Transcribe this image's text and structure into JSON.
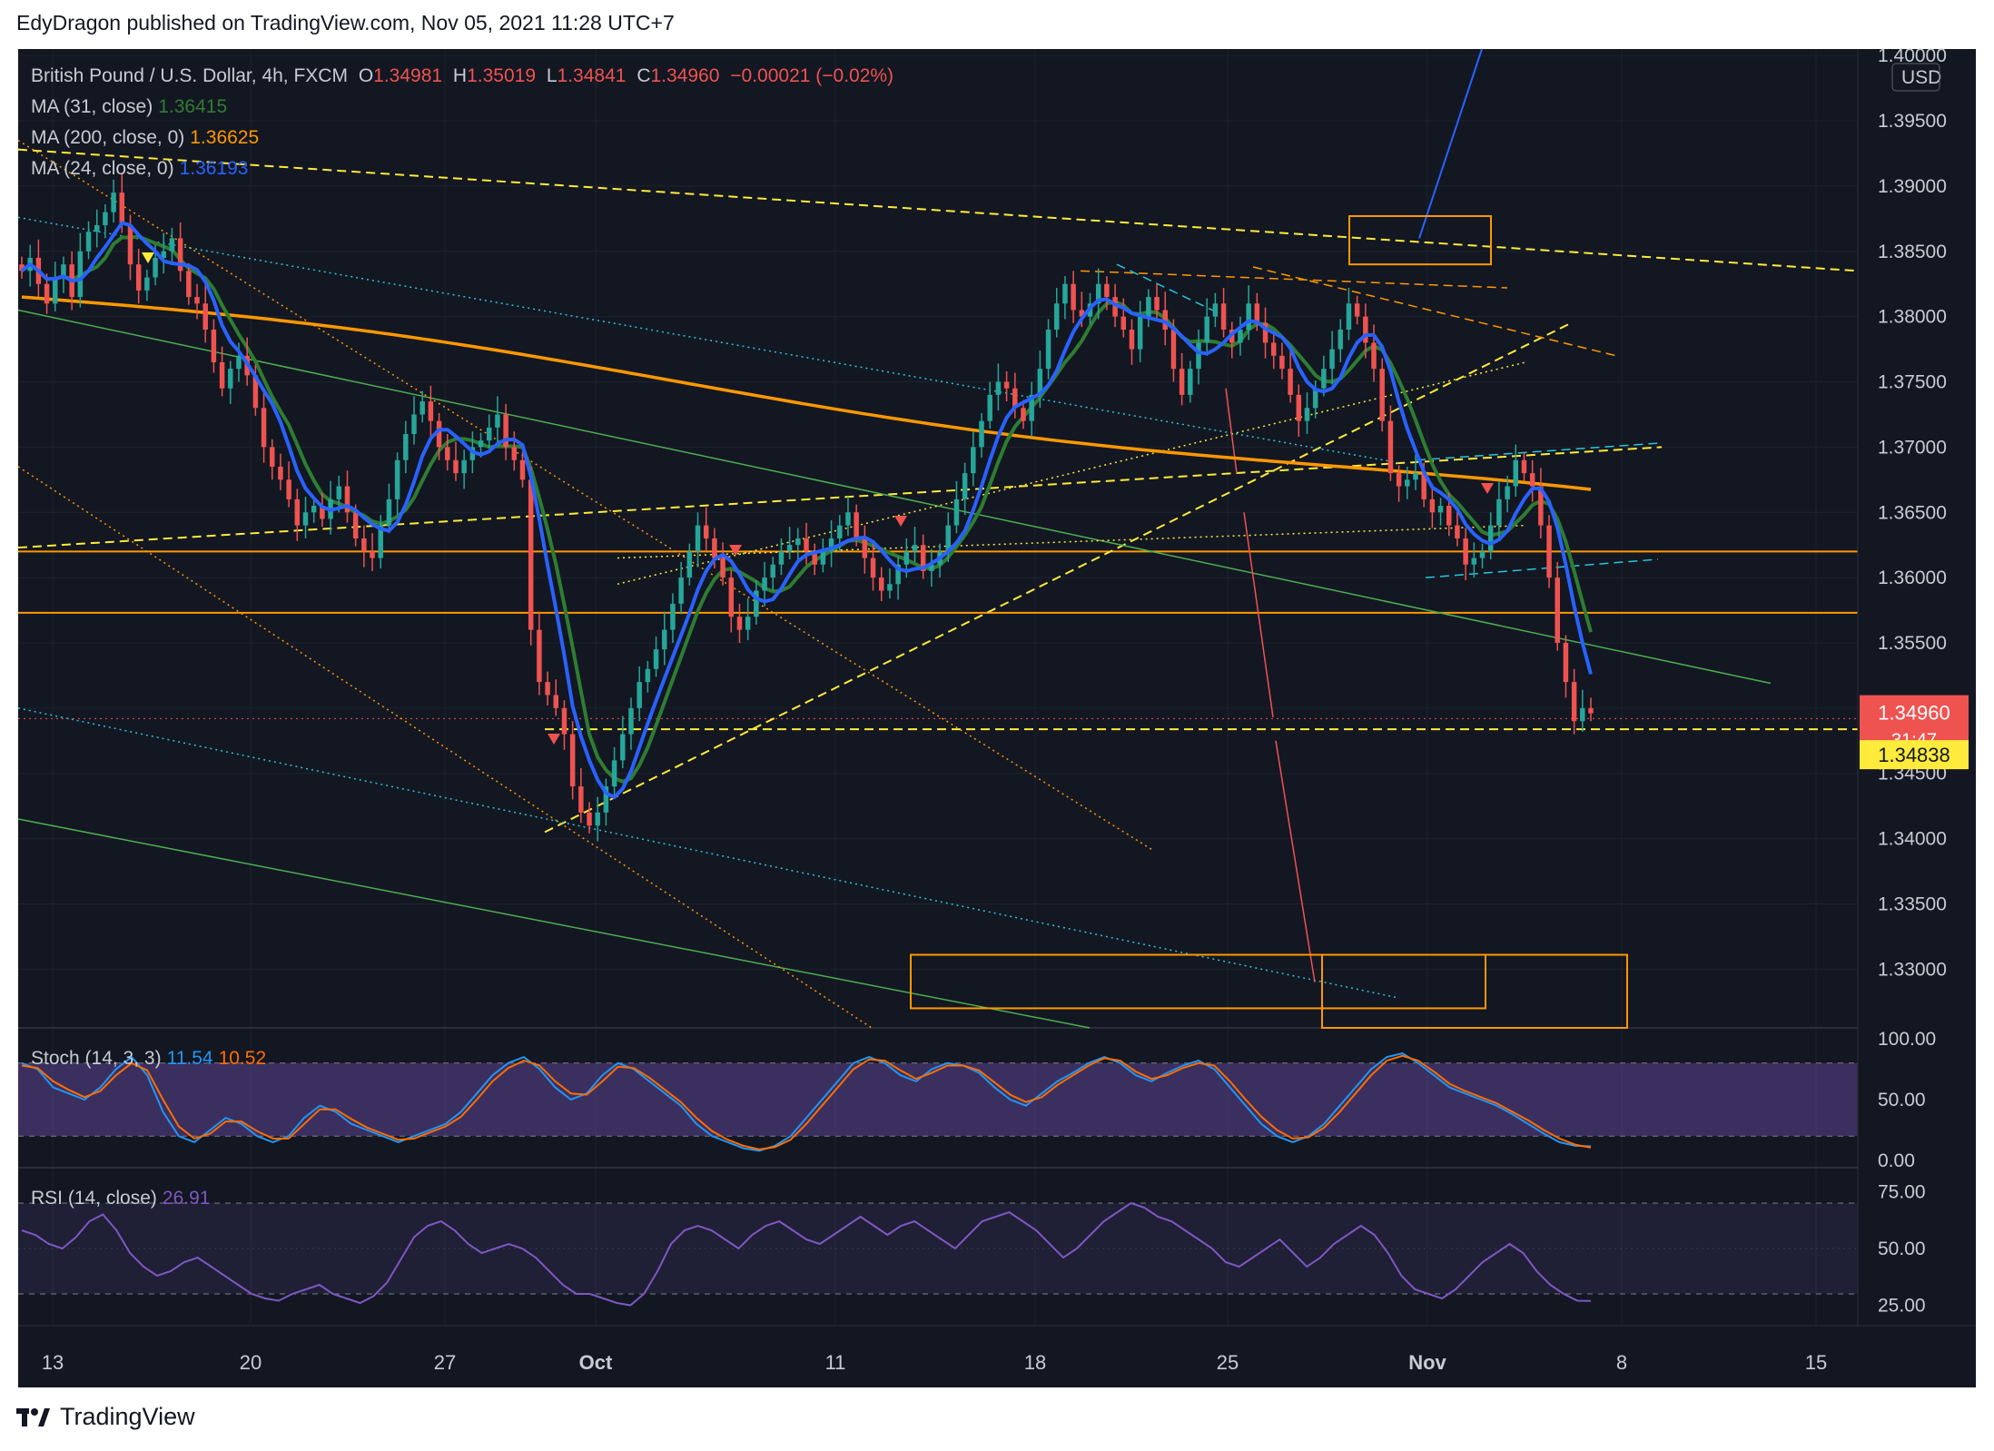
{
  "header": {
    "published": "EdyDragon published on TradingView.com, Nov 05, 2021 11:28 UTC+7"
  },
  "footer": {
    "brand": "TradingView"
  },
  "legend": {
    "symbol": "British Pound / U.S. Dollar, 4h, FXCM",
    "o_label": "O",
    "o_value": "1.34981",
    "h_label": "H",
    "h_value": "1.35019",
    "l_label": "L",
    "l_value": "1.34841",
    "c_label": "C",
    "c_value": "1.34960",
    "change": "−0.00021 (−0.02%)",
    "ma31_label": "MA (31, close)",
    "ma31_value": "1.36415",
    "ma200_label": "MA (200, close, 0)",
    "ma200_value": "1.36625",
    "ma24_label": "MA (24, close, 0)",
    "ma24_value": "1.36193"
  },
  "stoch": {
    "label": "Stoch (14, 3, 3)",
    "k": "11.54",
    "d": "10.52"
  },
  "rsi": {
    "label": "RSI (14, close)",
    "value": "26.91"
  },
  "colors": {
    "bg": "#131722",
    "up": "#26a69a",
    "down": "#ef5350",
    "ma31": "#2e7d32",
    "ma200": "#ff9800",
    "ma24": "#2962ff",
    "stoch_k": "#2196f3",
    "stoch_d": "#ff6d00",
    "rsi": "#7e57c2",
    "yellow": "#ffeb3b"
  },
  "chart_data": [
    {
      "type": "candlestick",
      "title": "British Pound / U.S. Dollar, 4h, FXCM",
      "currency": "USD",
      "y_ticks": [
        "1.40000",
        "1.39500",
        "1.39000",
        "1.38500",
        "1.38000",
        "1.37500",
        "1.37000",
        "1.36500",
        "1.36000",
        "1.35500",
        "1.35000",
        "1.34500",
        "1.34000",
        "1.33500",
        "1.33000"
      ],
      "x_ticks": [
        "13",
        "20",
        "27",
        "Oct",
        "11",
        "18",
        "25",
        "Nov",
        "8",
        "15"
      ],
      "ylim": [
        1.3255,
        1.4005
      ],
      "price_labels": {
        "last": "1.34960",
        "countdown": "31:47",
        "marked": "1.34838"
      },
      "horizontal_levels": [
        1.362,
        1.3573,
        1.34838
      ],
      "close_series": [
        1.3835,
        1.3845,
        1.3825,
        1.381,
        1.383,
        1.384,
        1.3815,
        1.385,
        1.3865,
        1.387,
        1.388,
        1.3895,
        1.387,
        1.384,
        1.382,
        1.383,
        1.3845,
        1.385,
        1.386,
        1.3835,
        1.3815,
        1.381,
        1.379,
        1.3765,
        1.3745,
        1.376,
        1.377,
        1.3755,
        1.373,
        1.37,
        1.3685,
        1.3675,
        1.366,
        1.364,
        1.365,
        1.3655,
        1.3645,
        1.366,
        1.367,
        1.365,
        1.363,
        1.362,
        1.3615,
        1.364,
        1.366,
        1.369,
        1.371,
        1.3725,
        1.3735,
        1.372,
        1.37,
        1.369,
        1.368,
        1.369,
        1.37,
        1.3705,
        1.3715,
        1.3725,
        1.37,
        1.369,
        1.3675,
        1.356,
        1.352,
        1.351,
        1.35,
        1.348,
        1.344,
        1.342,
        1.341,
        1.342,
        1.344,
        1.346,
        1.348,
        1.35,
        1.352,
        1.353,
        1.3545,
        1.356,
        1.358,
        1.36,
        1.362,
        1.364,
        1.363,
        1.3615,
        1.36,
        1.357,
        1.356,
        1.357,
        1.359,
        1.36,
        1.361,
        1.362,
        1.3625,
        1.363,
        1.362,
        1.361,
        1.362,
        1.363,
        1.364,
        1.365,
        1.363,
        1.3615,
        1.36,
        1.359,
        1.3595,
        1.361,
        1.362,
        1.3625,
        1.3605,
        1.361,
        1.362,
        1.364,
        1.366,
        1.368,
        1.37,
        1.372,
        1.374,
        1.375,
        1.3745,
        1.373,
        1.372,
        1.374,
        1.376,
        1.379,
        1.381,
        1.3825,
        1.3805,
        1.38,
        1.381,
        1.3825,
        1.3815,
        1.38,
        1.379,
        1.3775,
        1.38,
        1.3815,
        1.3805,
        1.379,
        1.376,
        1.374,
        1.376,
        1.378,
        1.38,
        1.381,
        1.379,
        1.378,
        1.379,
        1.381,
        1.3795,
        1.378,
        1.377,
        1.376,
        1.374,
        1.372,
        1.373,
        1.3745,
        1.376,
        1.3775,
        1.379,
        1.381,
        1.38,
        1.378,
        1.376,
        1.372,
        1.368,
        1.367,
        1.3675,
        1.368,
        1.366,
        1.365,
        1.3655,
        1.364,
        1.363,
        1.361,
        1.3615,
        1.362,
        1.364,
        1.366,
        1.367,
        1.369,
        1.368,
        1.367,
        1.364,
        1.36,
        1.355,
        1.352,
        1.349,
        1.35,
        1.3496
      ]
    },
    {
      "type": "line",
      "title": "Stoch (14, 3, 3)",
      "y_ticks": [
        "100.00",
        "50.00",
        "0.00"
      ],
      "ylim": [
        0,
        100
      ],
      "bands": [
        20,
        80
      ],
      "series": [
        {
          "name": "11.54",
          "values": [
            80,
            75,
            60,
            55,
            50,
            60,
            75,
            85,
            70,
            40,
            20,
            15,
            25,
            35,
            30,
            20,
            15,
            20,
            35,
            45,
            40,
            30,
            25,
            20,
            15,
            20,
            25,
            30,
            40,
            55,
            70,
            80,
            85,
            75,
            60,
            50,
            55,
            70,
            80,
            75,
            65,
            55,
            45,
            30,
            20,
            15,
            10,
            8,
            12,
            20,
            35,
            50,
            65,
            80,
            85,
            80,
            70,
            65,
            75,
            80,
            78,
            72,
            60,
            50,
            45,
            55,
            65,
            72,
            80,
            85,
            80,
            70,
            65,
            72,
            78,
            82,
            75,
            60,
            45,
            30,
            20,
            15,
            20,
            30,
            45,
            60,
            75,
            85,
            88,
            80,
            70,
            60,
            55,
            50,
            45,
            38,
            30,
            22,
            15,
            12,
            11.54
          ]
        },
        {
          "name": "10.52",
          "values": [
            78,
            76,
            65,
            58,
            52,
            57,
            70,
            80,
            74,
            50,
            28,
            18,
            22,
            32,
            32,
            24,
            18,
            18,
            30,
            42,
            42,
            34,
            27,
            22,
            17,
            18,
            23,
            28,
            36,
            50,
            65,
            76,
            82,
            78,
            65,
            55,
            54,
            65,
            77,
            76,
            68,
            58,
            48,
            35,
            24,
            17,
            12,
            9,
            11,
            17,
            30,
            45,
            60,
            75,
            83,
            82,
            74,
            67,
            72,
            78,
            78,
            74,
            64,
            54,
            48,
            52,
            62,
            70,
            78,
            84,
            82,
            73,
            67,
            70,
            76,
            80,
            78,
            65,
            50,
            36,
            25,
            18,
            19,
            27,
            40,
            55,
            70,
            82,
            86,
            82,
            73,
            63,
            57,
            52,
            47,
            40,
            33,
            25,
            18,
            13,
            10.52
          ]
        }
      ]
    },
    {
      "type": "line",
      "title": "RSI (14, close)",
      "y_ticks": [
        "75.00",
        "50.00",
        "25.00"
      ],
      "ylim": [
        20,
        80
      ],
      "bands": [
        30,
        70
      ],
      "series": [
        {
          "name": "26.91",
          "values": [
            58,
            56,
            52,
            50,
            55,
            62,
            65,
            58,
            48,
            42,
            38,
            40,
            44,
            46,
            42,
            38,
            34,
            30,
            28,
            27,
            30,
            32,
            34,
            30,
            28,
            26,
            29,
            35,
            45,
            55,
            60,
            62,
            58,
            52,
            48,
            50,
            52,
            50,
            46,
            40,
            34,
            30,
            30,
            28,
            26,
            25,
            30,
            40,
            52,
            58,
            60,
            58,
            54,
            50,
            56,
            60,
            62,
            58,
            54,
            52,
            56,
            60,
            64,
            60,
            56,
            60,
            62,
            58,
            54,
            50,
            56,
            62,
            64,
            66,
            62,
            58,
            52,
            46,
            50,
            56,
            62,
            66,
            70,
            68,
            64,
            62,
            58,
            54,
            50,
            44,
            42,
            46,
            50,
            54,
            48,
            42,
            46,
            52,
            56,
            60,
            56,
            48,
            38,
            32,
            30,
            28,
            32,
            38,
            44,
            48,
            52,
            48,
            40,
            34,
            30,
            27,
            26.91
          ]
        }
      ]
    }
  ]
}
